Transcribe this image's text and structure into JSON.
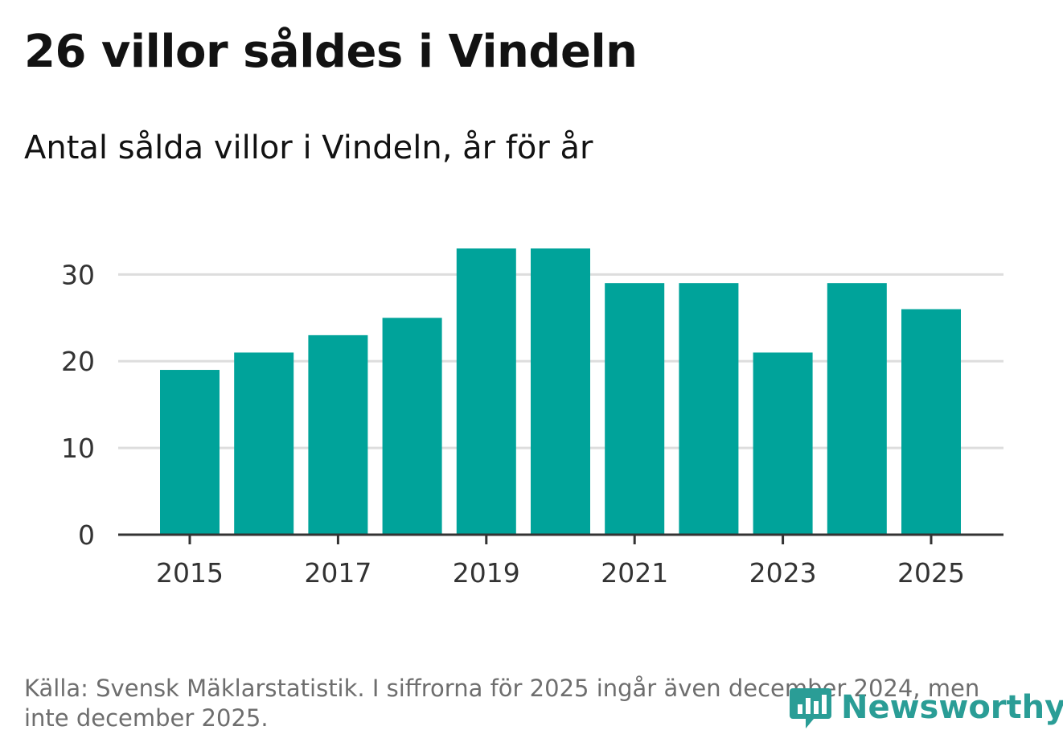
{
  "header": {
    "title": "26 villor såldes i Vindeln",
    "subtitle": "Antal sålda villor i Vindeln, år för år"
  },
  "chart_data": {
    "type": "bar",
    "categories": [
      "2015",
      "2016",
      "2017",
      "2018",
      "2019",
      "2020",
      "2021",
      "2022",
      "2023",
      "2024",
      "2025"
    ],
    "values": [
      19,
      21,
      23,
      25,
      33,
      33,
      29,
      29,
      21,
      29,
      26
    ],
    "x_tick_labels": [
      "2015",
      "2017",
      "2019",
      "2021",
      "2023",
      "2025"
    ],
    "y_ticks": [
      0,
      10,
      20,
      30
    ],
    "ylim": [
      0,
      33
    ],
    "grid": true,
    "bar_color": "#00a39a",
    "gridline_color": "#dddddd",
    "axis_color": "#333333"
  },
  "footer": {
    "source_note": "Källa: Svensk Mäklarstatistik. I siffrorna för 2025 ingår även december 2024, men inte december 2025.",
    "logo": {
      "icon": "newsworthy-chart-bubble-icon",
      "text": "Newsworthy",
      "color": "#2a9d96"
    }
  }
}
